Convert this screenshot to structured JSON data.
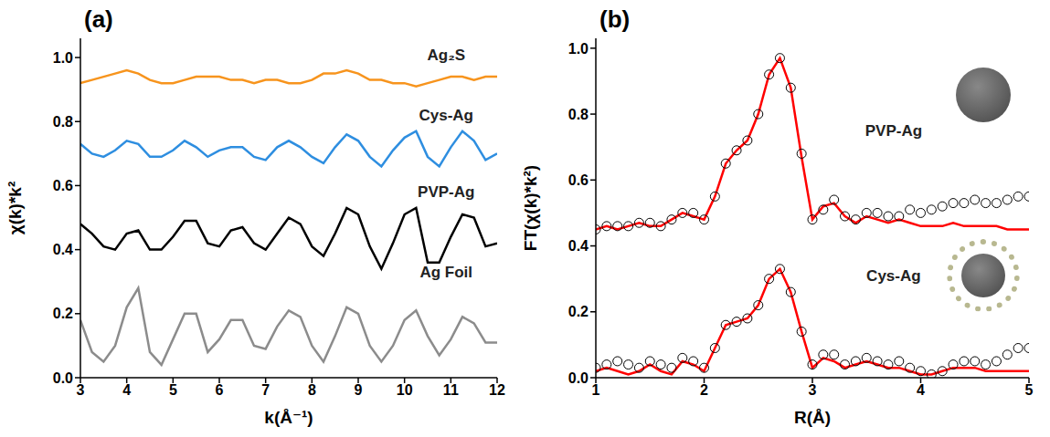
{
  "chart_data": [
    {
      "type": "line",
      "title": "(a)",
      "x_label": "k(Å⁻¹)",
      "y_label": "χ(k)*k²",
      "x": [
        3.0,
        3.25,
        3.5,
        3.75,
        4.0,
        4.25,
        4.5,
        4.75,
        5.0,
        5.25,
        5.5,
        5.75,
        6.0,
        6.25,
        6.5,
        6.75,
        7.0,
        7.25,
        7.5,
        7.75,
        8.0,
        8.25,
        8.5,
        8.75,
        9.0,
        9.25,
        9.5,
        9.75,
        10.0,
        10.25,
        10.5,
        10.75,
        11.0,
        11.25,
        11.5,
        11.75,
        12.0
      ],
      "xlim": [
        3,
        12
      ],
      "xticks": [
        3,
        4,
        5,
        6,
        7,
        8,
        9,
        10,
        11,
        12
      ],
      "ylim": [
        0,
        1.06
      ],
      "yticks": [
        {
          "value": 0,
          "label": "0.0"
        },
        {
          "value": 0.2,
          "label": "0.2"
        },
        {
          "value": 0.4,
          "label": "0.4"
        },
        {
          "value": 0.6,
          "label": "0.6"
        },
        {
          "value": 0.8,
          "label": "0.8"
        },
        {
          "value": 1,
          "label": "1.0"
        }
      ],
      "series": [
        {
          "name": "Ag₂S",
          "color": "#f7941d",
          "line_style": "solid",
          "marker": "none",
          "values": [
            0.92,
            0.93,
            0.94,
            0.95,
            0.96,
            0.95,
            0.93,
            0.92,
            0.92,
            0.93,
            0.94,
            0.94,
            0.94,
            0.93,
            0.93,
            0.92,
            0.93,
            0.93,
            0.92,
            0.92,
            0.93,
            0.95,
            0.95,
            0.96,
            0.95,
            0.93,
            0.93,
            0.92,
            0.92,
            0.91,
            0.92,
            0.93,
            0.94,
            0.94,
            0.93,
            0.94,
            0.94
          ]
        },
        {
          "name": "Cys-Ag",
          "color": "#2e8ee0",
          "line_style": "solid",
          "marker": "none",
          "values": [
            0.73,
            0.7,
            0.69,
            0.71,
            0.74,
            0.73,
            0.69,
            0.69,
            0.71,
            0.74,
            0.72,
            0.69,
            0.71,
            0.72,
            0.72,
            0.69,
            0.68,
            0.72,
            0.74,
            0.72,
            0.69,
            0.67,
            0.72,
            0.76,
            0.74,
            0.69,
            0.66,
            0.71,
            0.75,
            0.77,
            0.69,
            0.66,
            0.72,
            0.77,
            0.74,
            0.68,
            0.7
          ]
        },
        {
          "name": "PVP-Ag",
          "color": "#000000",
          "line_style": "solid",
          "marker": "none",
          "values": [
            0.48,
            0.45,
            0.41,
            0.4,
            0.45,
            0.46,
            0.4,
            0.4,
            0.44,
            0.49,
            0.49,
            0.42,
            0.41,
            0.46,
            0.47,
            0.42,
            0.4,
            0.45,
            0.5,
            0.48,
            0.41,
            0.38,
            0.45,
            0.53,
            0.51,
            0.41,
            0.34,
            0.42,
            0.51,
            0.53,
            0.36,
            0.36,
            0.44,
            0.51,
            0.5,
            0.41,
            0.42
          ]
        },
        {
          "name": "Ag Foil",
          "color": "#8c8c8c",
          "line_style": "solid",
          "marker": "none",
          "values": [
            0.18,
            0.08,
            0.05,
            0.1,
            0.22,
            0.28,
            0.08,
            0.04,
            0.12,
            0.2,
            0.2,
            0.08,
            0.12,
            0.18,
            0.18,
            0.1,
            0.09,
            0.16,
            0.21,
            0.19,
            0.1,
            0.05,
            0.13,
            0.22,
            0.2,
            0.1,
            0.05,
            0.1,
            0.18,
            0.21,
            0.13,
            0.07,
            0.12,
            0.19,
            0.17,
            0.11,
            0.11
          ]
        }
      ]
    },
    {
      "type": "line",
      "title": "(b)",
      "x_label": "R(Å)",
      "y_label": "FT(χ(k)*k²)",
      "x": [
        1.0,
        1.1,
        1.2,
        1.3,
        1.4,
        1.5,
        1.6,
        1.7,
        1.8,
        1.9,
        2.0,
        2.1,
        2.2,
        2.3,
        2.4,
        2.5,
        2.6,
        2.7,
        2.8,
        2.9,
        3.0,
        3.1,
        3.2,
        3.3,
        3.4,
        3.5,
        3.6,
        3.7,
        3.8,
        3.9,
        4.0,
        4.1,
        4.2,
        4.3,
        4.4,
        4.5,
        4.6,
        4.7,
        4.8,
        4.9,
        5.0
      ],
      "xlim": [
        1,
        5
      ],
      "xticks": [
        1,
        2,
        3,
        4,
        5
      ],
      "ylim": [
        0,
        1.03
      ],
      "yticks": [
        {
          "value": 0,
          "label": "0.0"
        },
        {
          "value": 0.2,
          "label": "0.2"
        },
        {
          "value": 0.4,
          "label": "0.4"
        },
        {
          "value": 0.6,
          "label": "0.6"
        },
        {
          "value": 0.8,
          "label": "0.8"
        },
        {
          "value": 1,
          "label": "1.0"
        }
      ],
      "series": [
        {
          "name": "PVP-Ag",
          "color": "#000000",
          "line_style": "none",
          "marker": "circle",
          "values": [
            0.45,
            0.46,
            0.46,
            0.46,
            0.47,
            0.47,
            0.46,
            0.48,
            0.5,
            0.5,
            0.48,
            0.55,
            0.65,
            0.69,
            0.72,
            0.8,
            0.92,
            0.97,
            0.88,
            0.68,
            0.48,
            0.51,
            0.54,
            0.49,
            0.48,
            0.5,
            0.5,
            0.49,
            0.49,
            0.51,
            0.5,
            0.51,
            0.52,
            0.53,
            0.53,
            0.54,
            0.53,
            0.53,
            0.54,
            0.55,
            0.55
          ]
        },
        {
          "color": "#ff0000",
          "line_style": "solid",
          "marker": "none",
          "values": [
            0.45,
            0.46,
            0.45,
            0.46,
            0.47,
            0.46,
            0.46,
            0.48,
            0.5,
            0.49,
            0.48,
            0.55,
            0.65,
            0.69,
            0.72,
            0.8,
            0.92,
            0.97,
            0.88,
            0.67,
            0.48,
            0.52,
            0.53,
            0.49,
            0.47,
            0.49,
            0.48,
            0.47,
            0.48,
            0.47,
            0.46,
            0.46,
            0.46,
            0.47,
            0.46,
            0.46,
            0.46,
            0.46,
            0.45,
            0.45,
            0.45
          ]
        },
        {
          "name": "Cys-Ag",
          "color": "#000000",
          "line_style": "none",
          "marker": "circle",
          "values": [
            0.03,
            0.04,
            0.05,
            0.04,
            0.03,
            0.05,
            0.04,
            0.03,
            0.06,
            0.05,
            0.03,
            0.09,
            0.16,
            0.17,
            0.18,
            0.22,
            0.3,
            0.33,
            0.26,
            0.14,
            0.04,
            0.07,
            0.07,
            0.04,
            0.05,
            0.06,
            0.05,
            0.04,
            0.05,
            0.03,
            0.02,
            0.01,
            0.02,
            0.04,
            0.05,
            0.05,
            0.04,
            0.05,
            0.07,
            0.09,
            0.09
          ]
        },
        {
          "color": "#ff0000",
          "line_style": "solid",
          "marker": "none",
          "values": [
            0.02,
            0.03,
            0.02,
            0.01,
            0.02,
            0.04,
            0.02,
            0.01,
            0.05,
            0.04,
            0.02,
            0.09,
            0.16,
            0.17,
            0.18,
            0.22,
            0.3,
            0.33,
            0.26,
            0.14,
            0.03,
            0.06,
            0.05,
            0.03,
            0.04,
            0.05,
            0.04,
            0.03,
            0.03,
            0.02,
            0.01,
            0.01,
            0.02,
            0.03,
            0.03,
            0.03,
            0.02,
            0.02,
            0.02,
            0.02,
            0.02
          ]
        }
      ]
    }
  ]
}
